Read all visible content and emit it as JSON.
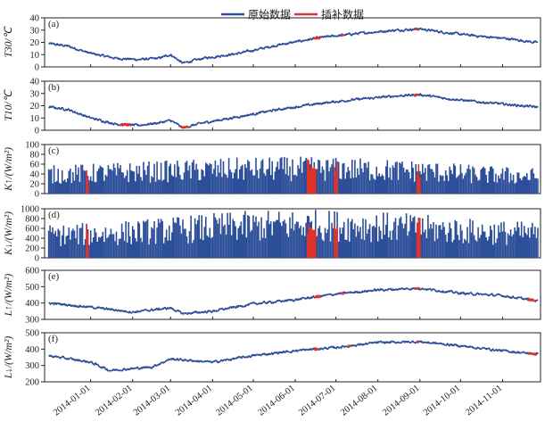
{
  "chart_data": [
    {
      "panel_label": "(a)",
      "ylabel": "T30/℃",
      "type": "line",
      "ylim": [
        0,
        40
      ],
      "yticks": [
        0,
        10,
        20,
        30,
        40
      ],
      "filled": false,
      "series": [
        {
          "name": "原始数据",
          "color": "#2d4f9a",
          "knots": [
            [
              "2013-12-01",
              19
            ],
            [
              "2013-12-15",
              17
            ],
            [
              "2014-01-01",
              11
            ],
            [
              "2014-01-20",
              7
            ],
            [
              "2014-02-05",
              6
            ],
            [
              "2014-02-20",
              7
            ],
            [
              "2014-03-01",
              10
            ],
            [
              "2014-03-10",
              3
            ],
            [
              "2014-03-25",
              7
            ],
            [
              "2014-04-20",
              11
            ],
            [
              "2014-05-20",
              18
            ],
            [
              "2014-06-20",
              24
            ],
            [
              "2014-07-15",
              27
            ],
            [
              "2014-08-15",
              30
            ],
            [
              "2014-09-01",
              31
            ],
            [
              "2014-09-20",
              28
            ],
            [
              "2014-10-15",
              25
            ],
            [
              "2014-11-05",
              23
            ],
            [
              "2014-11-25",
              20
            ]
          ]
        },
        {
          "name": "插补数据",
          "color": "#e0312a",
          "ranges": [
            [
              "2014-06-15",
              "2014-06-20"
            ],
            [
              "2014-07-05",
              "2014-07-07"
            ],
            [
              "2014-08-28",
              "2014-08-31"
            ]
          ]
        }
      ]
    },
    {
      "panel_label": "(b)",
      "ylabel": "T10/℃",
      "type": "line",
      "ylim": [
        0,
        40
      ],
      "yticks": [
        0,
        10,
        20,
        30,
        40
      ],
      "filled": false,
      "series": [
        {
          "name": "原始数据",
          "color": "#2d4f9a",
          "knots": [
            [
              "2013-12-01",
              19
            ],
            [
              "2013-12-15",
              17
            ],
            [
              "2014-01-01",
              10
            ],
            [
              "2014-01-20",
              5
            ],
            [
              "2014-02-05",
              4
            ],
            [
              "2014-02-20",
              6
            ],
            [
              "2014-03-01",
              8
            ],
            [
              "2014-03-10",
              2
            ],
            [
              "2014-03-25",
              6
            ],
            [
              "2014-04-20",
              11
            ],
            [
              "2014-05-20",
              17
            ],
            [
              "2014-06-20",
              22
            ],
            [
              "2014-07-15",
              25
            ],
            [
              "2014-08-15",
              28
            ],
            [
              "2014-09-01",
              29
            ],
            [
              "2014-09-20",
              26
            ],
            [
              "2014-10-15",
              23
            ],
            [
              "2014-11-05",
              21
            ],
            [
              "2014-11-25",
              19
            ]
          ]
        },
        {
          "name": "插补数据",
          "color": "#e0312a",
          "ranges": [
            [
              "2014-01-23",
              "2014-01-30"
            ],
            [
              "2014-03-08",
              "2014-03-14"
            ],
            [
              "2014-08-28",
              "2014-08-31"
            ]
          ]
        }
      ]
    },
    {
      "panel_label": "(c)",
      "ylabel": "K↑/(W/m²)",
      "type": "area",
      "ylim": [
        0,
        100
      ],
      "yticks": [
        0,
        20,
        40,
        60,
        80,
        100
      ],
      "filled": true,
      "series": [
        {
          "name": "原始数据",
          "color": "#2d4f9a",
          "knots": [
            [
              "2013-12-01",
              55
            ],
            [
              "2014-01-15",
              60
            ],
            [
              "2014-03-01",
              65
            ],
            [
              "2014-04-15",
              70
            ],
            [
              "2014-06-01",
              72
            ],
            [
              "2014-07-15",
              70
            ],
            [
              "2014-09-01",
              65
            ],
            [
              "2014-10-15",
              55
            ],
            [
              "2014-11-25",
              50
            ]
          ]
        },
        {
          "name": "插补数据",
          "color": "#e0312a",
          "ranges": [
            [
              "2013-12-29",
              "2013-12-30"
            ],
            [
              "2014-06-10",
              "2014-06-16"
            ],
            [
              "2014-06-30",
              "2014-07-02"
            ],
            [
              "2014-08-30",
              "2014-09-01"
            ]
          ]
        }
      ]
    },
    {
      "panel_label": "(d)",
      "ylabel": "K↓/(W/m²)",
      "type": "area",
      "ylim": [
        0,
        1000
      ],
      "yticks": [
        0,
        200,
        400,
        600,
        800,
        1000
      ],
      "filled": true,
      "series": [
        {
          "name": "原始数据",
          "color": "#2d4f9a",
          "knots": [
            [
              "2013-12-01",
              650
            ],
            [
              "2014-01-15",
              700
            ],
            [
              "2014-03-01",
              800
            ],
            [
              "2014-04-15",
              900
            ],
            [
              "2014-06-01",
              950
            ],
            [
              "2014-07-15",
              930
            ],
            [
              "2014-09-01",
              850
            ],
            [
              "2014-10-15",
              750
            ],
            [
              "2014-11-25",
              700
            ]
          ]
        },
        {
          "name": "插补数据",
          "color": "#e0312a",
          "ranges": [
            [
              "2013-12-29",
              "2013-12-30"
            ],
            [
              "2014-06-10",
              "2014-06-16"
            ],
            [
              "2014-06-30",
              "2014-07-02"
            ],
            [
              "2014-08-30",
              "2014-09-01"
            ]
          ]
        }
      ]
    },
    {
      "panel_label": "(e)",
      "ylabel": "L↑/(W/m²)",
      "type": "line",
      "ylim": [
        300,
        600
      ],
      "yticks": [
        300,
        400,
        500,
        600
      ],
      "filled": false,
      "series": [
        {
          "name": "原始数据",
          "color": "#2d4f9a",
          "knots": [
            [
              "2013-12-01",
              400
            ],
            [
              "2014-01-01",
              375
            ],
            [
              "2014-02-01",
              345
            ],
            [
              "2014-03-01",
              370
            ],
            [
              "2014-03-10",
              335
            ],
            [
              "2014-04-01",
              350
            ],
            [
              "2014-05-01",
              395
            ],
            [
              "2014-06-01",
              420
            ],
            [
              "2014-07-01",
              455
            ],
            [
              "2014-08-01",
              480
            ],
            [
              "2014-09-01",
              490
            ],
            [
              "2014-10-01",
              460
            ],
            [
              "2014-11-01",
              445
            ],
            [
              "2014-11-25",
              415
            ]
          ]
        },
        {
          "name": "插补数据",
          "color": "#e0312a",
          "ranges": [
            [
              "2014-06-15",
              "2014-06-20"
            ],
            [
              "2014-07-05",
              "2014-07-07"
            ],
            [
              "2014-08-28",
              "2014-09-01"
            ],
            [
              "2014-11-19",
              "2014-11-25"
            ]
          ]
        }
      ]
    },
    {
      "panel_label": "(f)",
      "ylabel": "L↓/(W/m²)",
      "type": "line",
      "ylim": [
        200,
        500
      ],
      "yticks": [
        200,
        300,
        400,
        500
      ],
      "filled": false,
      "series": [
        {
          "name": "原始数据",
          "color": "#2d4f9a",
          "knots": [
            [
              "2013-12-01",
              360
            ],
            [
              "2014-01-01",
              320
            ],
            [
              "2014-01-15",
              270
            ],
            [
              "2014-02-15",
              290
            ],
            [
              "2014-03-01",
              340
            ],
            [
              "2014-04-01",
              320
            ],
            [
              "2014-05-01",
              360
            ],
            [
              "2014-06-01",
              390
            ],
            [
              "2014-07-01",
              410
            ],
            [
              "2014-08-01",
              440
            ],
            [
              "2014-09-01",
              445
            ],
            [
              "2014-10-01",
              420
            ],
            [
              "2014-11-01",
              390
            ],
            [
              "2014-11-25",
              370
            ]
          ]
        },
        {
          "name": "插补数据",
          "color": "#e0312a",
          "ranges": [
            [
              "2014-06-15",
              "2014-06-18"
            ],
            [
              "2014-07-10",
              "2014-07-12"
            ],
            [
              "2014-08-30",
              "2014-09-01"
            ],
            [
              "2014-11-20",
              "2014-11-26"
            ]
          ]
        }
      ]
    }
  ],
  "legend": {
    "items": [
      {
        "label": "原始数据",
        "color": "#2d4f9a"
      },
      {
        "label": "插补数据",
        "color": "#e0312a"
      }
    ]
  },
  "xaxis": {
    "range": [
      "2013-11-28",
      "2014-11-29"
    ],
    "ticks": [
      "2014-01-01",
      "2014-02-01",
      "2014-03-01",
      "2014-04-01",
      "2014-05-01",
      "2014-06-01",
      "2014-07-01",
      "2014-08-01",
      "2014-09-01",
      "2014-10-01",
      "2014-11-01"
    ]
  }
}
